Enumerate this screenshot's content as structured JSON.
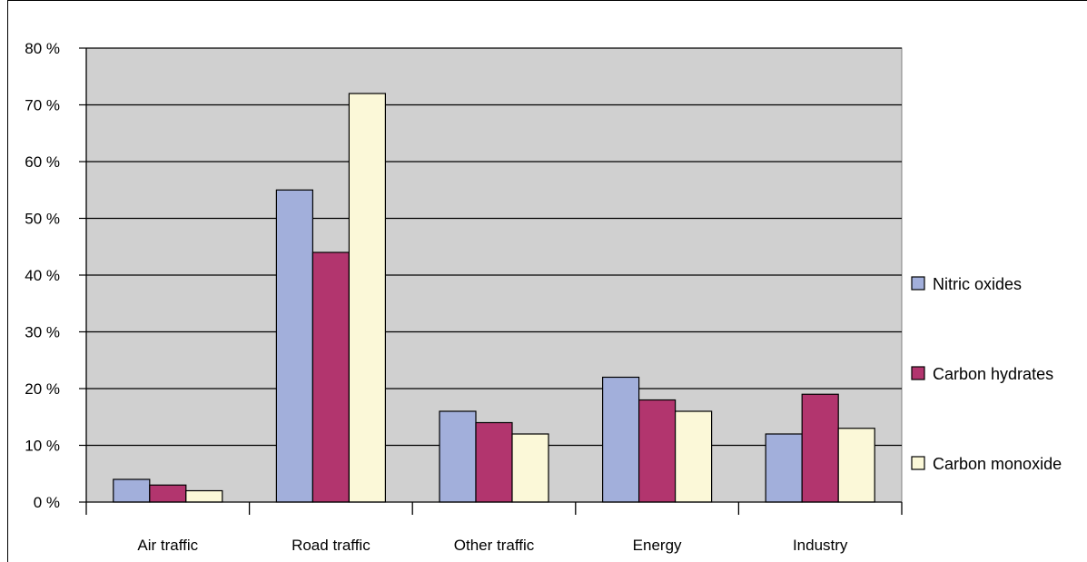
{
  "chart_data": {
    "type": "bar",
    "title": "",
    "xlabel": "",
    "ylabel": "",
    "ylim": [
      0,
      80
    ],
    "y_unit": "%",
    "y_ticks": [
      "0 %",
      "10 %",
      "20 %",
      "30 %",
      "40 %",
      "50 %",
      "60 %",
      "70 %",
      "80 %"
    ],
    "categories": [
      "Air traffic",
      "Road traffic",
      "Other traffic",
      "Energy",
      "Industry"
    ],
    "series": [
      {
        "name": "Nitric oxides",
        "color": "#a2afdb",
        "values": [
          4,
          55,
          16,
          22,
          12
        ]
      },
      {
        "name": "Carbon hydrates",
        "color": "#b2356e",
        "values": [
          3,
          44,
          14,
          18,
          19
        ]
      },
      {
        "name": "Carbon monoxide",
        "color": "#fbf8d8",
        "values": [
          2,
          72,
          12,
          16,
          13
        ]
      }
    ],
    "grid": true,
    "plot_background": "#d0d0d0",
    "legend_position": "right"
  }
}
